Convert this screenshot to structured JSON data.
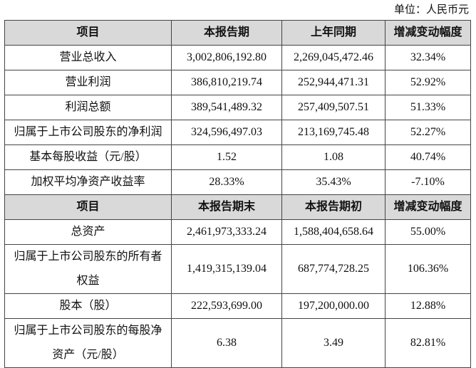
{
  "unit": "单位：人民币元",
  "table": {
    "sections": [
      {
        "header": [
          "项目",
          "本报告期",
          "上年同期",
          "增减变动幅度"
        ],
        "rows": [
          [
            "营业总收入",
            "3,002,806,192.80",
            "2,269,045,472.46",
            "32.34%"
          ],
          [
            "营业利润",
            "386,810,219.74",
            "252,944,471.31",
            "52.92%"
          ],
          [
            "利润总额",
            "389,541,489.32",
            "257,409,507.51",
            "51.33%"
          ],
          [
            "归属于上市公司股东的净利润",
            "324,596,497.03",
            "213,169,745.48",
            "52.27%"
          ],
          [
            "基本每股收益（元/股）",
            "1.52",
            "1.08",
            "40.74%"
          ],
          [
            "加权平均净资产收益率",
            "28.33%",
            "35.43%",
            "-7.10%"
          ]
        ]
      },
      {
        "header": [
          "项目",
          "本报告期末",
          "本报告期初",
          "增减变动幅度"
        ],
        "rows": [
          [
            "总资产",
            "2,461,973,333.24",
            "1,588,404,658.64",
            "55.00%"
          ],
          [
            "归属于上市公司股东的所有者权益",
            "1,419,315,139.04",
            "687,774,728.25",
            "106.36%"
          ],
          [
            "股本（股）",
            "222,593,699.00",
            "197,200,000.00",
            "12.88%"
          ],
          [
            "归属于上市公司股东的每股净资产（元/股）",
            "6.38",
            "3.49",
            "82.81%"
          ]
        ]
      }
    ]
  }
}
